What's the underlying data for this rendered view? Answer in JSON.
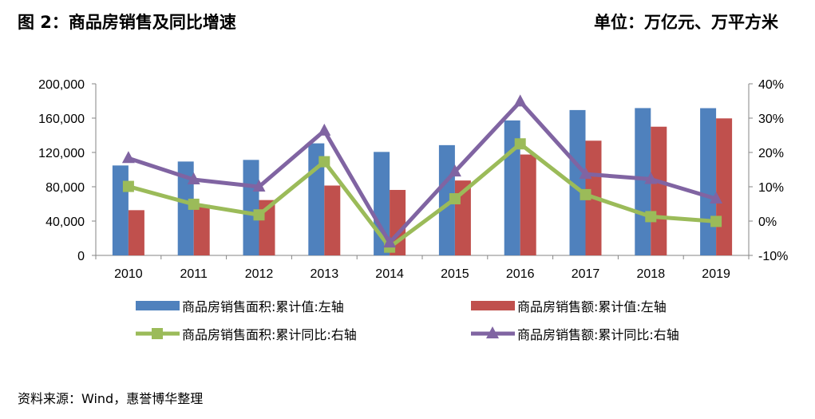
{
  "header": {
    "title": "图 2：商品房销售及同比增速",
    "unit": "单位：万亿元、万平方米"
  },
  "footer": {
    "source": "资料来源：Wind，惠誉博华整理"
  },
  "chart_data": {
    "type": "bar",
    "categories": [
      "2010",
      "2011",
      "2012",
      "2013",
      "2014",
      "2015",
      "2016",
      "2017",
      "2018",
      "2019"
    ],
    "y_left": {
      "min": 0,
      "max": 200000,
      "ticks": [
        0,
        40000,
        80000,
        120000,
        160000,
        200000
      ],
      "tick_labels": [
        "0",
        "40,000",
        "80,000",
        "120,000",
        "160,000",
        "200,000"
      ]
    },
    "y_right": {
      "min": -10,
      "max": 40,
      "ticks": [
        -10,
        0,
        10,
        20,
        30,
        40
      ],
      "tick_labels": [
        "-10%",
        "0%",
        "10%",
        "20%",
        "30%",
        "40%"
      ]
    },
    "grid": false,
    "legend_position": "bottom",
    "series": [
      {
        "name": "商品房销售面积:累计值:左轴",
        "type": "bar",
        "axis": "left",
        "color": "#4F81BD",
        "values": [
          104800,
          109400,
          111300,
          130600,
          120600,
          128500,
          157300,
          169400,
          171700,
          171600
        ]
      },
      {
        "name": "商品房销售额:累计值:左轴",
        "type": "bar",
        "axis": "left",
        "color": "#C0504D",
        "values": [
          52700,
          59100,
          64500,
          81400,
          76300,
          87300,
          117600,
          133700,
          150000,
          159700
        ]
      },
      {
        "name": "商品房销售面积:累计同比:右轴",
        "type": "line",
        "marker": "square",
        "axis": "right",
        "color": "#9BBB59",
        "values": [
          10.1,
          4.9,
          1.8,
          17.3,
          -7.6,
          6.5,
          22.5,
          7.7,
          1.3,
          -0.1
        ]
      },
      {
        "name": "商品房销售额:累计同比:右轴",
        "type": "line",
        "marker": "triangle",
        "axis": "right",
        "color": "#8064A2",
        "values": [
          18.3,
          12.1,
          10.0,
          26.3,
          -6.3,
          14.4,
          34.8,
          13.7,
          12.2,
          6.5
        ]
      }
    ]
  }
}
